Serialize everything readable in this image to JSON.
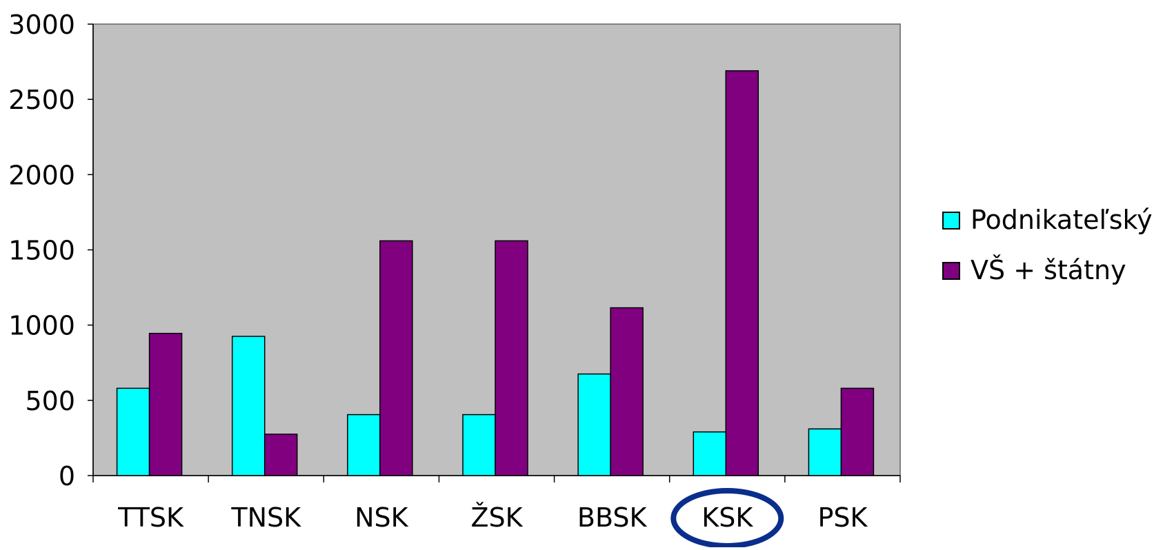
{
  "chart_data": {
    "type": "bar",
    "categories": [
      "TTSK",
      "TNSK",
      "NSK",
      "ŽSK",
      "BBSK",
      "KSK",
      "PSK"
    ],
    "series": [
      {
        "name": "Podnikateľský",
        "color": "#00FFFF",
        "values": [
          580,
          925,
          405,
          405,
          675,
          290,
          310
        ]
      },
      {
        "name": "VŠ + štátny",
        "color": "#800080",
        "values": [
          945,
          275,
          1560,
          1560,
          1115,
          2690,
          580
        ]
      }
    ],
    "yticks": [
      "0",
      "500",
      "1000",
      "1500",
      "2000",
      "2500",
      "3000"
    ],
    "ylim": [
      0,
      3000
    ],
    "grid": false,
    "plot_background": "#C0C0C0",
    "legend": "right",
    "highlighted_category": "KSK",
    "highlight_color": "#0A2E8C"
  }
}
